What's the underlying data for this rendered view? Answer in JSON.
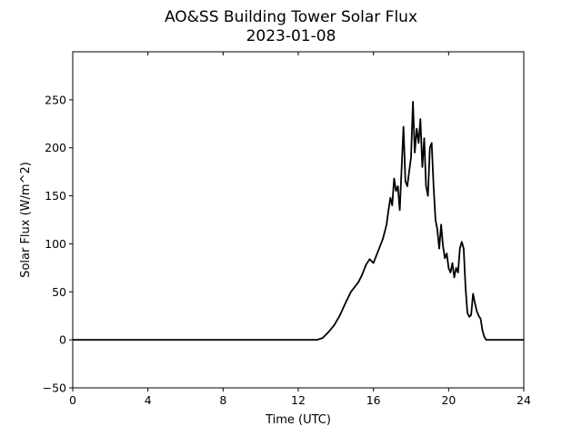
{
  "chart_data": {
    "type": "line",
    "title": "AO&SS Building Tower Solar Flux",
    "subtitle": "2023-01-08",
    "xlabel": "Time (UTC)",
    "ylabel": "Solar Flux (W/m^2)",
    "xlim": [
      0,
      24
    ],
    "ylim": [
      -50,
      300
    ],
    "xticks": [
      0,
      4,
      8,
      12,
      16,
      20,
      24
    ],
    "yticks": [
      -50,
      0,
      50,
      100,
      150,
      200,
      250
    ],
    "grid": false,
    "legend": "none",
    "line_color": "#000000",
    "series": [
      {
        "x": [
          0,
          12.0,
          13.0,
          13.3,
          13.6,
          13.9,
          14.2,
          14.5,
          14.8,
          15.0,
          15.2,
          15.4,
          15.6,
          15.8,
          15.9,
          16.0,
          16.1,
          16.3,
          16.5,
          16.7,
          16.8,
          16.9,
          17.0,
          17.1,
          17.2,
          17.3,
          17.4,
          17.5,
          17.6,
          17.7,
          17.8,
          17.9,
          18.0,
          18.1,
          18.2,
          18.3,
          18.4,
          18.5,
          18.6,
          18.7,
          18.8,
          18.9,
          19.0,
          19.1,
          19.2,
          19.3,
          19.4,
          19.5,
          19.6,
          19.7,
          19.8,
          19.9,
          20.0,
          20.1,
          20.2,
          20.3,
          20.4,
          20.5,
          20.6,
          20.7,
          20.8,
          20.9,
          21.0,
          21.1,
          21.2,
          21.3,
          21.4,
          21.5,
          21.6,
          21.7,
          21.8,
          21.9,
          22.0,
          22.1,
          22.2,
          22.3,
          22.5,
          22.7,
          23.0,
          24.0
        ],
        "y": [
          0,
          0,
          0,
          2,
          8,
          15,
          25,
          38,
          50,
          55,
          60,
          68,
          78,
          84,
          82,
          80,
          85,
          95,
          105,
          120,
          135,
          148,
          140,
          168,
          155,
          160,
          135,
          180,
          222,
          165,
          160,
          175,
          190,
          248,
          195,
          220,
          205,
          230,
          180,
          210,
          160,
          150,
          200,
          205,
          160,
          125,
          115,
          95,
          120,
          98,
          85,
          90,
          75,
          70,
          80,
          65,
          75,
          70,
          95,
          102,
          95,
          55,
          28,
          24,
          26,
          48,
          38,
          30,
          25,
          22,
          10,
          3,
          0,
          0,
          0,
          0,
          0,
          0,
          0,
          0
        ]
      }
    ]
  }
}
